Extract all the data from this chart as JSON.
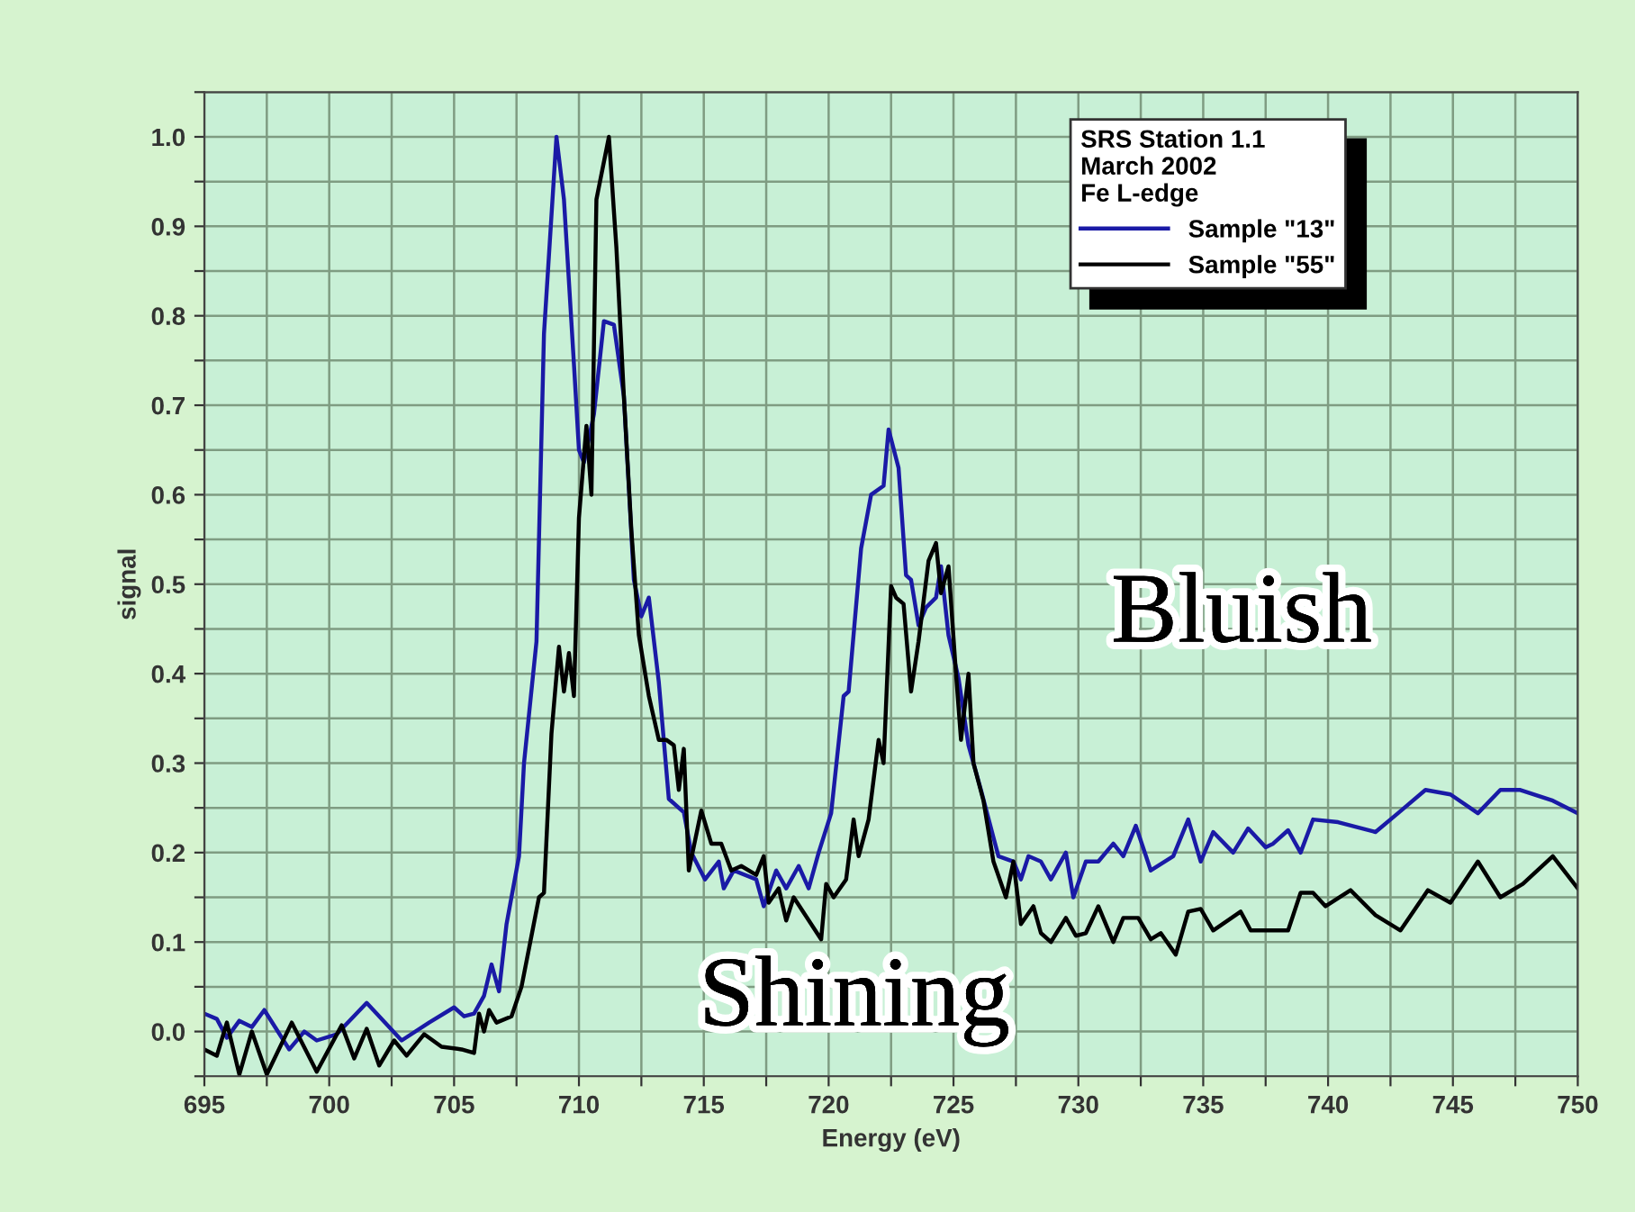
{
  "chart_data": {
    "type": "line",
    "xlabel": "Energy (eV)",
    "ylabel": "signal",
    "legend_title": "SRS Station 1.1\nMarch 2002\nFe L-edge",
    "legend": "top right",
    "grid": true,
    "marker": "none",
    "line_style": "solid",
    "xlim": [
      695,
      750
    ],
    "xticks": [
      695,
      {
        "value": 697.5,
        "label": null
      },
      700,
      {
        "value": 702.5,
        "label": null
      },
      705,
      {
        "value": 707.5,
        "label": null
      },
      710,
      {
        "value": 712.5,
        "label": null
      },
      715,
      {
        "value": 717.5,
        "label": null
      },
      720,
      {
        "value": 722.5,
        "label": null
      },
      725,
      {
        "value": 727.5,
        "label": null
      },
      730,
      {
        "value": 732.5,
        "label": null
      },
      735,
      {
        "value": 737.5,
        "label": null
      },
      740,
      {
        "value": 742.5,
        "label": null
      },
      745,
      {
        "value": 747.5,
        "label": null
      },
      750
    ],
    "ylim": [
      -0.05,
      1.05
    ],
    "yticks": [
      {
        "value": -0.05,
        "label": null
      },
      {
        "value": 0,
        "label": "0.0"
      },
      {
        "value": 0.05,
        "label": null
      },
      0.1,
      {
        "value": 0.15,
        "label": null
      },
      0.2,
      {
        "value": 0.25,
        "label": null
      },
      0.3,
      {
        "value": 0.35,
        "label": null
      },
      0.4,
      {
        "value": 0.45,
        "label": null
      },
      0.5,
      {
        "value": 0.55,
        "label": null
      },
      0.6,
      {
        "value": 0.65,
        "label": null
      },
      0.7,
      {
        "value": 0.75,
        "label": null
      },
      0.8,
      {
        "value": 0.85,
        "label": null
      },
      0.9,
      {
        "value": 0.95,
        "label": null
      },
      {
        "value": 1,
        "label": "1.0"
      },
      {
        "value": 1.05,
        "label": null
      }
    ],
    "annotations": [
      "Bluish",
      "Shining"
    ],
    "series": [
      {
        "name": "Sample \"13\"",
        "color": "#1a1aa6",
        "x": [
          695,
          695.5,
          695.9,
          696.4,
          696.9,
          697.4,
          698.4,
          699,
          699.5,
          700.3,
          701.5,
          702.9,
          704,
          705,
          705.4,
          705.8,
          706.2,
          706.5,
          706.8,
          707.1,
          707.6,
          707.8,
          708.3,
          708.6,
          709.1,
          709.4,
          709.8,
          710.0,
          710.2,
          710.6,
          711.0,
          711.4,
          711.8,
          712.2,
          712.5,
          712.8,
          713.2,
          713.6,
          714.2,
          714.5,
          715.05,
          715.6,
          715.8,
          716.2,
          717.1,
          717.4,
          717.9,
          718.3,
          718.8,
          719.2,
          719.6,
          720.1,
          720.6,
          720.8,
          721.3,
          721.7,
          722.2,
          722.4,
          722.8,
          723.1,
          723.3,
          723.6,
          723.9,
          724.3,
          724.5,
          724.8,
          725.2,
          725.6,
          726.1,
          726.6,
          726.8,
          727.4,
          727.7,
          728.0,
          728.5,
          728.9,
          729.5,
          729.8,
          730.3,
          730.8,
          731.4,
          731.8,
          732.3,
          732.9,
          733.8,
          734.4,
          734.9,
          735.4,
          736.2,
          736.8,
          737.5,
          737.8,
          738.4,
          738.9,
          739.4,
          740.4,
          741.9,
          742.8,
          743.9,
          744.9,
          746.0,
          746.9,
          747.7,
          749.0,
          750
        ],
        "values": [
          0.02,
          0.014,
          -0.007,
          0.012,
          0.005,
          0.024,
          -0.02,
          0,
          -0.01,
          -0.003,
          0.032,
          -0.01,
          0.01,
          0.027,
          0.017,
          0.02,
          0.04,
          0.075,
          0.045,
          0.12,
          0.196,
          0.3,
          0.436,
          0.78,
          1.0,
          0.93,
          0.746,
          0.65,
          0.636,
          0.69,
          0.794,
          0.79,
          0.71,
          0.505,
          0.464,
          0.485,
          0.39,
          0.26,
          0.245,
          0.2,
          0.17,
          0.19,
          0.16,
          0.18,
          0.17,
          0.14,
          0.18,
          0.16,
          0.185,
          0.16,
          0.2,
          0.244,
          0.375,
          0.38,
          0.54,
          0.6,
          0.61,
          0.673,
          0.63,
          0.51,
          0.505,
          0.454,
          0.474,
          0.485,
          0.52,
          0.443,
          0.395,
          0.32,
          0.27,
          0.217,
          0.196,
          0.19,
          0.17,
          0.196,
          0.19,
          0.17,
          0.2,
          0.15,
          0.19,
          0.19,
          0.21,
          0.196,
          0.23,
          0.18,
          0.196,
          0.237,
          0.19,
          0.223,
          0.2,
          0.227,
          0.206,
          0.21,
          0.225,
          0.2,
          0.237,
          0.234,
          0.223,
          0.244,
          0.27,
          0.265,
          0.244,
          0.27,
          0.27,
          0.258,
          0.244
        ]
      },
      {
        "name": "Sample \"55\"",
        "color": "#000000",
        "x": [
          695,
          695.5,
          695.9,
          696.4,
          696.9,
          697.5,
          698.5,
          699.5,
          700.5,
          701.0,
          701.5,
          702.0,
          702.6,
          703.1,
          703.8,
          704.5,
          705.3,
          705.8,
          706.0,
          706.2,
          706.4,
          706.7,
          707.3,
          707.7,
          708.1,
          708.4,
          708.6,
          708.9,
          709.2,
          709.4,
          709.6,
          709.8,
          710.0,
          710.3,
          710.5,
          710.7,
          711.2,
          711.5,
          711.8,
          712.1,
          712.4,
          712.8,
          713.2,
          713.5,
          713.8,
          714.0,
          714.2,
          714.4,
          714.9,
          715.3,
          715.7,
          716.1,
          716.5,
          717.1,
          717.4,
          717.6,
          718.0,
          718.3,
          718.6,
          719.7,
          719.9,
          720.2,
          720.7,
          721.0,
          721.2,
          721.6,
          722.0,
          722.2,
          722.5,
          722.7,
          723.0,
          723.3,
          723.6,
          724.0,
          724.3,
          724.5,
          724.8,
          725.1,
          725.3,
          725.6,
          725.8,
          726.2,
          726.6,
          727.1,
          727.4,
          727.7,
          728.2,
          728.5,
          728.9,
          729.5,
          729.9,
          730.3,
          730.8,
          731.4,
          731.8,
          732.4,
          732.9,
          733.3,
          733.9,
          734.4,
          734.9,
          735.4,
          736.5,
          736.9,
          738.4,
          738.9,
          739.4,
          739.9,
          740.9,
          741.9,
          742.9,
          744.0,
          744.9,
          746.0,
          746.9,
          747.8,
          749.0,
          750
        ],
        "values": [
          -0.02,
          -0.027,
          0.01,
          -0.048,
          0,
          -0.048,
          0.01,
          -0.045,
          0.007,
          -0.03,
          0.003,
          -0.038,
          -0.01,
          -0.027,
          -0.003,
          -0.017,
          -0.02,
          -0.024,
          0.02,
          0,
          0.024,
          0.01,
          0.017,
          0.05,
          0.107,
          0.15,
          0.155,
          0.333,
          0.43,
          0.38,
          0.423,
          0.375,
          0.574,
          0.677,
          0.6,
          0.93,
          1.0,
          0.876,
          0.71,
          0.56,
          0.443,
          0.375,
          0.326,
          0.326,
          0.32,
          0.27,
          0.316,
          0.18,
          0.247,
          0.21,
          0.21,
          0.18,
          0.185,
          0.175,
          0.196,
          0.144,
          0.16,
          0.124,
          0.15,
          0.103,
          0.165,
          0.15,
          0.17,
          0.237,
          0.196,
          0.237,
          0.326,
          0.3,
          0.498,
          0.485,
          0.478,
          0.38,
          0.436,
          0.526,
          0.546,
          0.49,
          0.52,
          0.4,
          0.326,
          0.4,
          0.3,
          0.258,
          0.19,
          0.15,
          0.19,
          0.12,
          0.14,
          0.11,
          0.1,
          0.127,
          0.107,
          0.11,
          0.14,
          0.1,
          0.127,
          0.127,
          0.103,
          0.11,
          0.086,
          0.134,
          0.137,
          0.113,
          0.134,
          0.113,
          0.113,
          0.155,
          0.155,
          0.14,
          0.158,
          0.13,
          0.113,
          0.158,
          0.144,
          0.19,
          0.15,
          0.165,
          0.196,
          0.16
        ]
      }
    ]
  }
}
